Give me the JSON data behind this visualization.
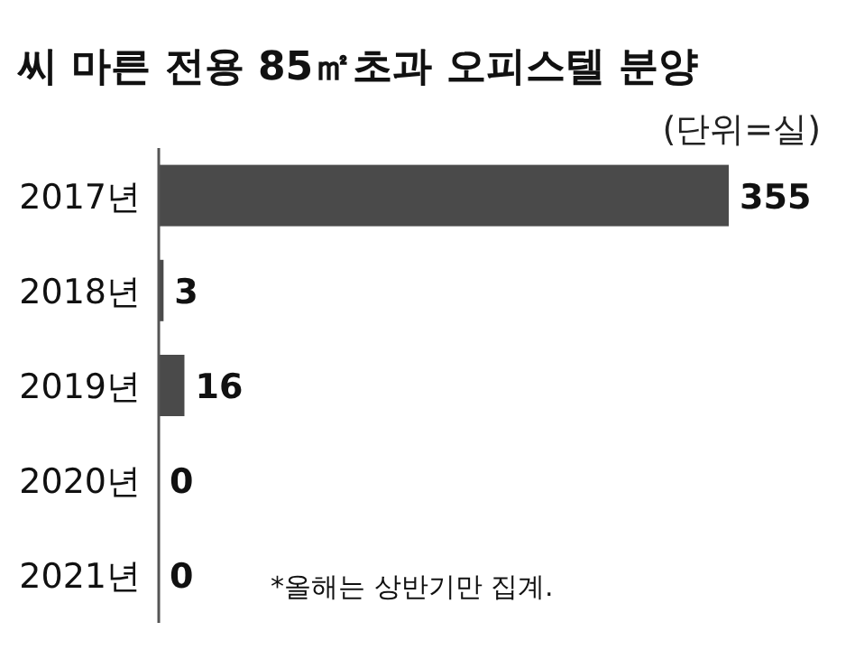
{
  "chart_data": {
    "type": "bar",
    "orientation": "horizontal",
    "title": "씨 마른 전용 85㎡초과 오피스텔 분양",
    "subtitle": "(단위=실)",
    "categories": [
      "2017년",
      "2018년",
      "2019년",
      "2020년",
      "2021년"
    ],
    "values": [
      355,
      3,
      16,
      0,
      0
    ],
    "color": "#4a4a4a",
    "data_labels": true,
    "annotations": [
      "*올해는 상반기만 집계."
    ]
  }
}
